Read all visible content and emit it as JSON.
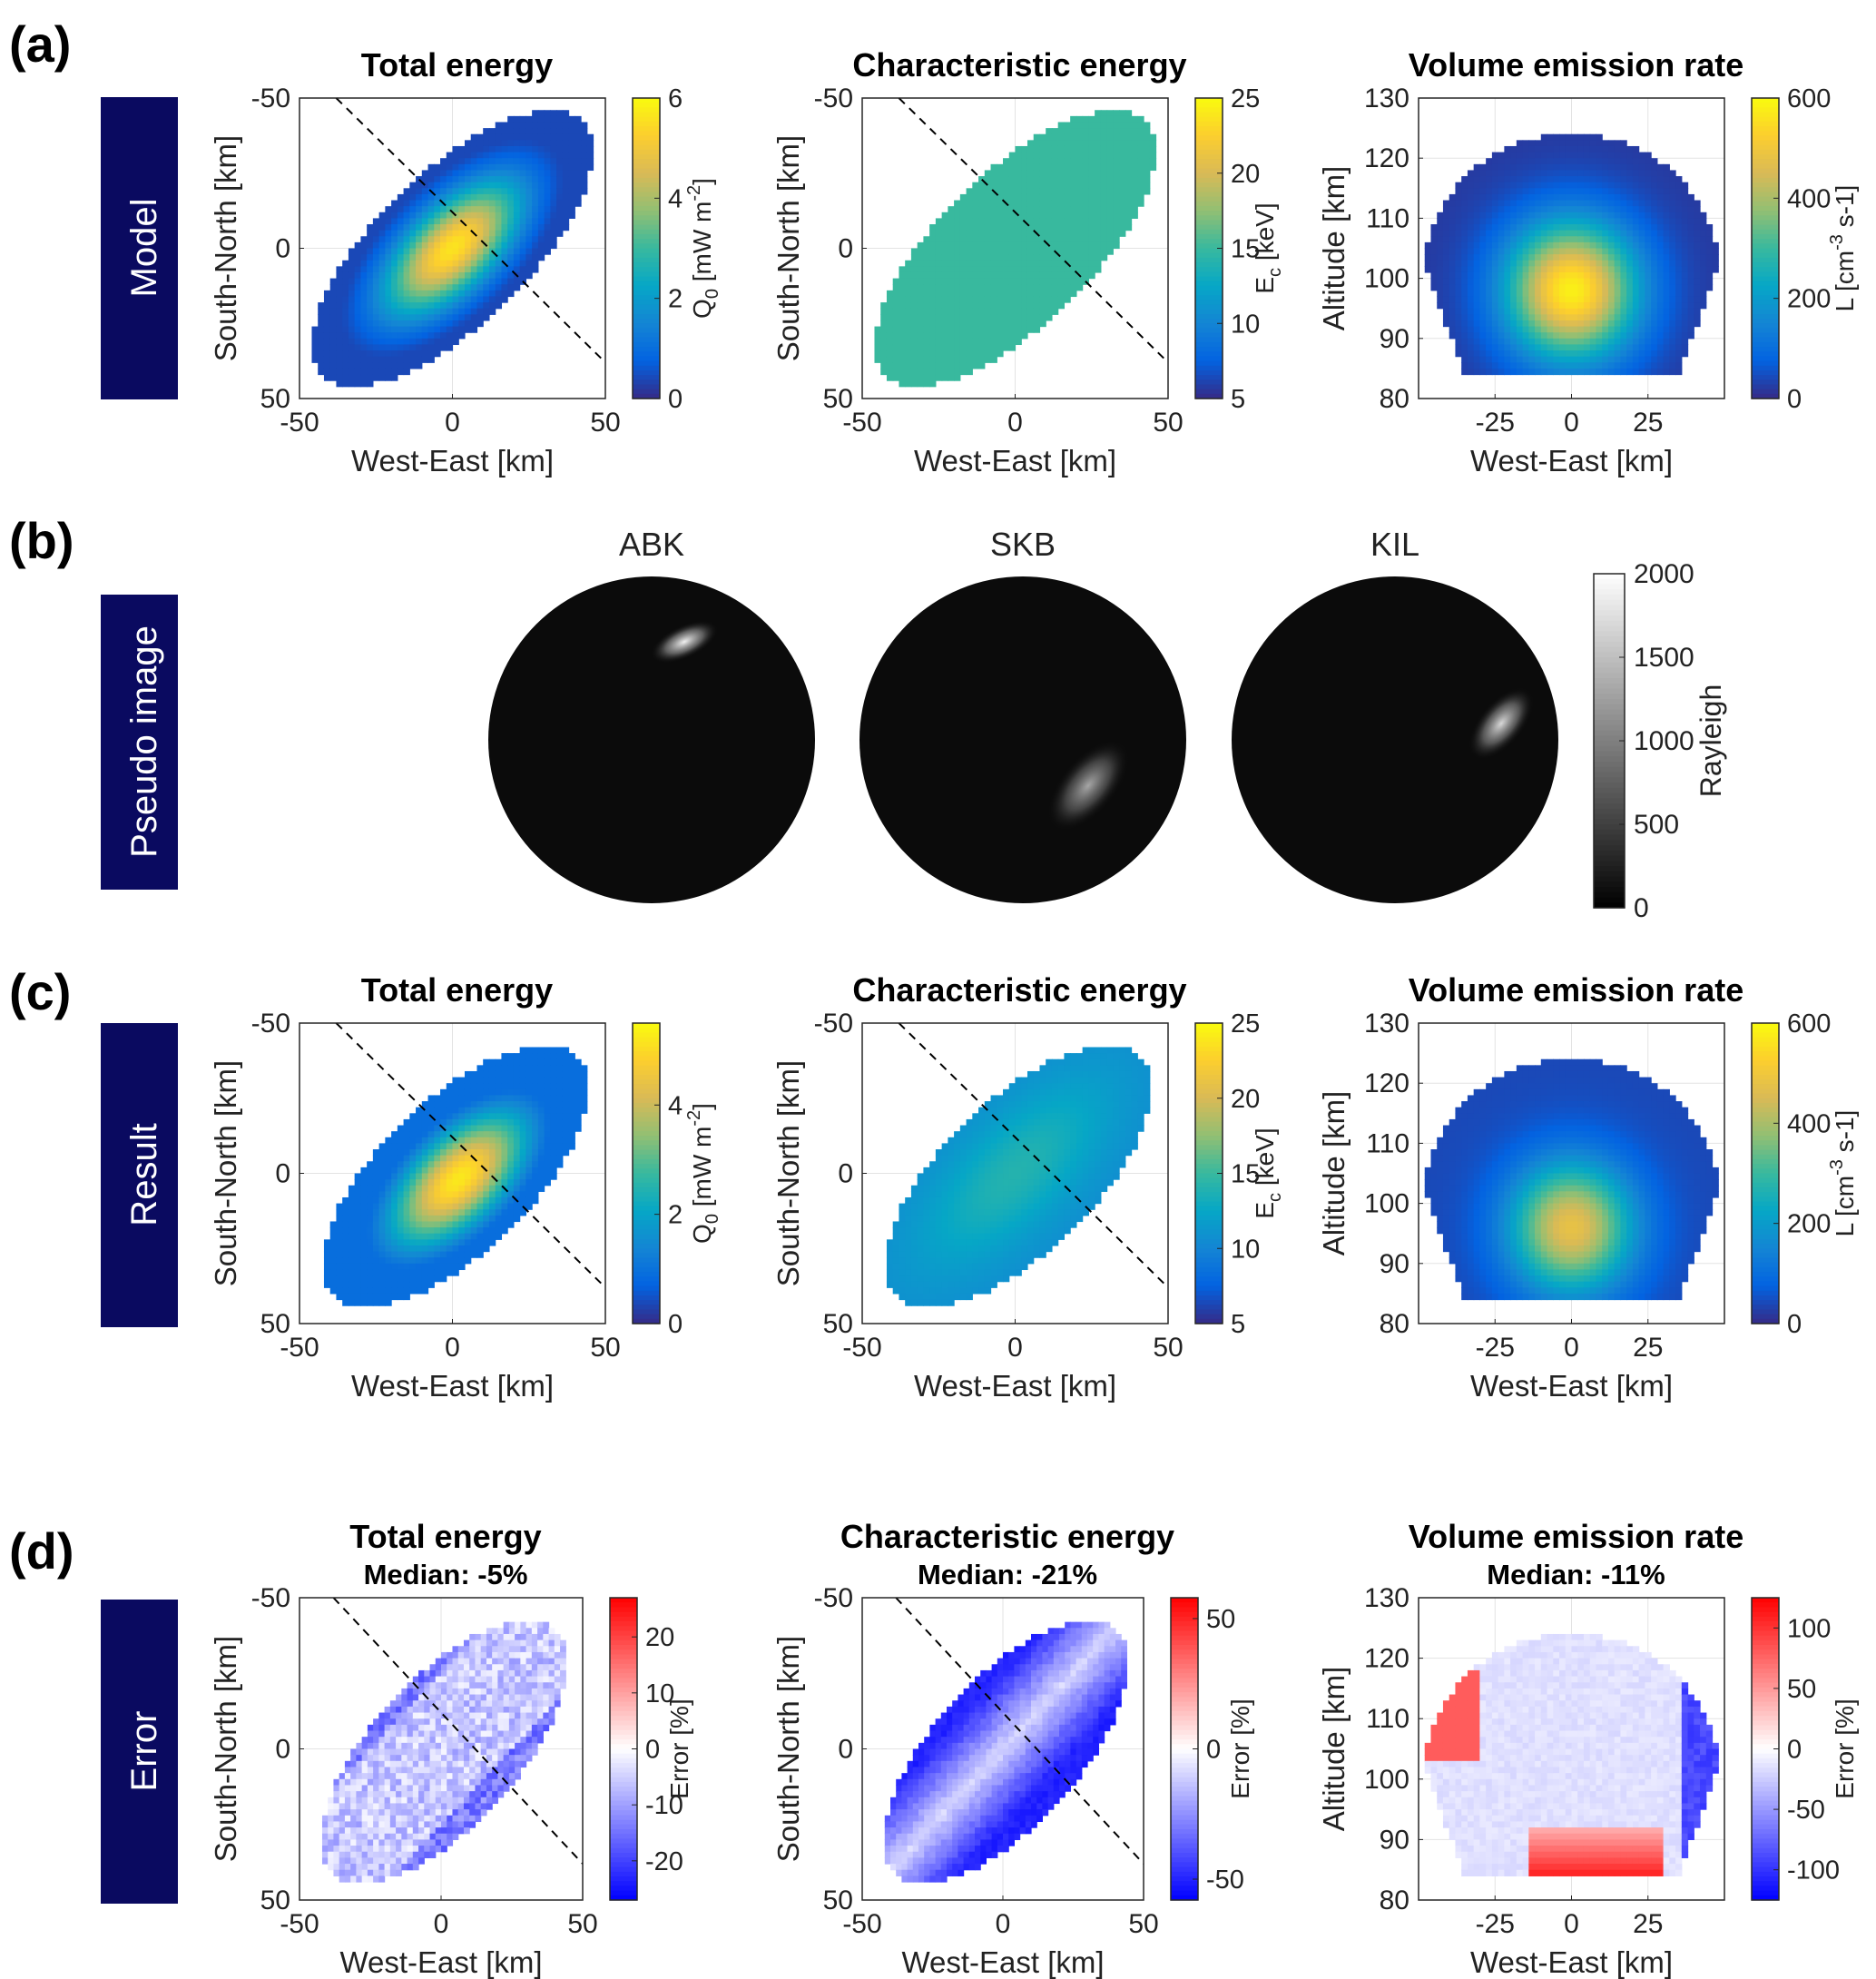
{
  "figure": {
    "rows": [
      {
        "panel_label": "(a)",
        "row_label": "Model"
      },
      {
        "panel_label": "(b)",
        "row_label": "Pseudo image"
      },
      {
        "panel_label": "(c)",
        "row_label": "Result"
      },
      {
        "panel_label": "(d)",
        "row_label": "Error"
      }
    ]
  },
  "colors": {
    "row_label_bg": "#0a0a60",
    "row_label_fg": "#ffffff",
    "dashed_line": "#000000",
    "parula": [
      "#352a87",
      "#0363e1",
      "#1485d4",
      "#06a7c6",
      "#38b99e",
      "#92bf73",
      "#d9ba56",
      "#fcce2e",
      "#f9fb0e"
    ],
    "bwr": [
      "#0000ff",
      "#ffffff",
      "#ff0000"
    ]
  },
  "chart_data": [
    {
      "id": "a1",
      "type": "heatmap",
      "title": "Total energy",
      "field": "q0",
      "xlabel": "West-East [km]",
      "ylabel": "South-North [km]",
      "xlim": [
        -50,
        50
      ],
      "ylim": [
        -50,
        50
      ],
      "y_reversed": true,
      "xticks": [
        -50,
        0,
        50
      ],
      "yticks": [
        -50,
        0,
        50
      ],
      "grid": true,
      "diagonal": true,
      "colorbar": {
        "label": "Q0 [mW m-2]",
        "label_main": "Q",
        "label_sub": "0",
        "label_rest": " [mW m",
        "label_sup": "-2",
        "label_end": "]",
        "min": 0,
        "max": 6,
        "ticks": [
          0,
          2,
          4,
          6
        ],
        "colormap": "parula"
      },
      "field_desc": {
        "shape": "ellipse",
        "orientation_deg": -45,
        "semi_major_km": 60,
        "semi_minor_km": 25,
        "peak_value": 5.6,
        "peak_center": [
          0,
          0
        ]
      }
    },
    {
      "id": "a2",
      "type": "heatmap",
      "title": "Characteristic energy",
      "field": "ec",
      "xlabel": "West-East [km]",
      "ylabel": "South-North [km]",
      "xlim": [
        -50,
        50
      ],
      "ylim": [
        -50,
        50
      ],
      "y_reversed": true,
      "xticks": [
        -50,
        0,
        50
      ],
      "yticks": [
        -50,
        0,
        50
      ],
      "grid": true,
      "diagonal": true,
      "colorbar": {
        "label": "Ec [keV]",
        "label_main": "E",
        "label_sub": "c",
        "label_rest": " [keV]",
        "label_sup": "",
        "label_end": "",
        "min": 5,
        "max": 25,
        "ticks": [
          5,
          10,
          15,
          20,
          25
        ],
        "colormap": "parula"
      },
      "field_desc": {
        "shape": "ellipse",
        "orientation_deg": -45,
        "semi_major_km": 60,
        "semi_minor_km": 25,
        "value": 15
      }
    },
    {
      "id": "a3",
      "type": "heatmap",
      "title": "Volume emission rate",
      "field": "ver",
      "xlabel": "West-East [km]",
      "ylabel": "Altitude [km]",
      "xlim": [
        -50,
        50
      ],
      "ylim": [
        80,
        130
      ],
      "y_reversed": false,
      "xticks": [
        -25,
        0,
        25
      ],
      "yticks": [
        80,
        90,
        100,
        110,
        120,
        130
      ],
      "grid": true,
      "diagonal": false,
      "colorbar": {
        "label": "L [cm-3 s-1]",
        "label_main": "L",
        "label_sub": "",
        "label_rest": " [cm",
        "label_sup": "-3",
        "label_end": " s-1]",
        "min": 0,
        "max": 600,
        "ticks": [
          0,
          200,
          400,
          600
        ],
        "colormap": "parula"
      },
      "field_desc": {
        "peak_altitude_km": 98,
        "peak_value": 560
      }
    },
    {
      "id": "b",
      "type": "image",
      "title": "Pseudo image",
      "cameras": [
        "ABK",
        "SKB",
        "KIL"
      ],
      "colorbar": {
        "label": "Rayleigh",
        "min": 0,
        "max": 2000,
        "ticks": [
          0,
          500,
          1000,
          1500,
          2000
        ],
        "colormap": "gray"
      },
      "spots": [
        {
          "camera": "ABK",
          "peak_rayleigh": 1900
        },
        {
          "camera": "SKB",
          "peak_rayleigh": 1300
        },
        {
          "camera": "KIL",
          "peak_rayleigh": 1700
        }
      ]
    },
    {
      "id": "c1",
      "type": "heatmap",
      "title": "Total energy",
      "field": "q0r",
      "xlabel": "West-East [km]",
      "ylabel": "South-North [km]",
      "xlim": [
        -50,
        50
      ],
      "ylim": [
        -50,
        50
      ],
      "y_reversed": true,
      "xticks": [
        -50,
        0,
        50
      ],
      "yticks": [
        -50,
        0,
        50
      ],
      "grid": true,
      "diagonal": true,
      "colorbar": {
        "label": "Q0 [mW m-2]",
        "label_main": "Q",
        "label_sub": "0",
        "label_rest": " [mW m",
        "label_sup": "-2",
        "label_end": "]",
        "min": 0,
        "max": 5.5,
        "ticks": [
          0,
          2,
          4
        ],
        "colormap": "parula"
      },
      "field_desc": {
        "peak_value": 5.2
      }
    },
    {
      "id": "c2",
      "type": "heatmap",
      "title": "Characteristic energy",
      "field": "ecr",
      "xlabel": "West-East [km]",
      "ylabel": "South-North [km]",
      "xlim": [
        -50,
        50
      ],
      "ylim": [
        -50,
        50
      ],
      "y_reversed": true,
      "xticks": [
        -50,
        0,
        50
      ],
      "yticks": [
        -50,
        0,
        50
      ],
      "grid": true,
      "diagonal": true,
      "colorbar": {
        "label": "Ec [keV]",
        "label_main": "E",
        "label_sub": "c",
        "label_rest": " [keV]",
        "label_sup": "",
        "label_end": "",
        "min": 5,
        "max": 25,
        "ticks": [
          5,
          10,
          15,
          20,
          25
        ],
        "colormap": "parula"
      },
      "field_desc": {
        "value_range": [
          11,
          14
        ]
      }
    },
    {
      "id": "c3",
      "type": "heatmap",
      "title": "Volume emission rate",
      "field": "verr",
      "xlabel": "West-East [km]",
      "ylabel": "Altitude [km]",
      "xlim": [
        -50,
        50
      ],
      "ylim": [
        80,
        130
      ],
      "y_reversed": false,
      "xticks": [
        -25,
        0,
        25
      ],
      "yticks": [
        80,
        90,
        100,
        110,
        120,
        130
      ],
      "grid": true,
      "diagonal": false,
      "colorbar": {
        "label": "L [cm-3 s-1]",
        "label_main": "L",
        "label_sub": "",
        "label_rest": " [cm",
        "label_sup": "-3",
        "label_end": " s-1]",
        "min": 0,
        "max": 600,
        "ticks": [
          0,
          200,
          400,
          600
        ],
        "colormap": "parula"
      },
      "field_desc": {
        "peak_altitude_km": 96,
        "peak_value": 440
      }
    },
    {
      "id": "d1",
      "type": "heatmap",
      "title": "Total energy",
      "subtitle": "Median: -5%",
      "field": "errq",
      "xlabel": "West-East [km]",
      "ylabel": "South-North [km]",
      "xlim": [
        -50,
        50
      ],
      "ylim": [
        -50,
        50
      ],
      "y_reversed": true,
      "xticks": [
        -50,
        0,
        50
      ],
      "yticks": [
        -50,
        0,
        50
      ],
      "grid": true,
      "diagonal": true,
      "colorbar": {
        "label": "Error [%]",
        "label_main": "Error [%]",
        "label_sub": "",
        "label_rest": "",
        "label_sup": "",
        "label_end": "",
        "min": -27,
        "max": 27,
        "ticks": [
          -20,
          -10,
          0,
          10,
          20
        ],
        "colormap": "bwr"
      },
      "field_desc": {
        "median_error_pct": -5
      }
    },
    {
      "id": "d2",
      "type": "heatmap",
      "title": "Characteristic energy",
      "subtitle": "Median: -21%",
      "field": "erre",
      "xlabel": "West-East [km]",
      "ylabel": "South-North [km]",
      "xlim": [
        -50,
        50
      ],
      "ylim": [
        -50,
        50
      ],
      "y_reversed": true,
      "xticks": [
        -50,
        0,
        50
      ],
      "yticks": [
        -50,
        0,
        50
      ],
      "grid": true,
      "diagonal": true,
      "colorbar": {
        "label": "Error [%]",
        "label_main": "Error [%]",
        "label_sub": "",
        "label_rest": "",
        "label_sup": "",
        "label_end": "",
        "min": -58,
        "max": 58,
        "ticks": [
          -50,
          0,
          50
        ],
        "colormap": "bwr"
      },
      "field_desc": {
        "median_error_pct": -21
      }
    },
    {
      "id": "d3",
      "type": "heatmap",
      "title": "Volume emission rate",
      "subtitle": "Median: -11%",
      "field": "errv",
      "xlabel": "West-East [km]",
      "ylabel": "Altitude [km]",
      "xlim": [
        -50,
        50
      ],
      "ylim": [
        80,
        130
      ],
      "y_reversed": false,
      "xticks": [
        -25,
        0,
        25
      ],
      "yticks": [
        80,
        90,
        100,
        110,
        120,
        130
      ],
      "grid": true,
      "diagonal": false,
      "colorbar": {
        "label": "Error [%]",
        "label_main": "Error [%]",
        "label_sub": "",
        "label_rest": "",
        "label_sup": "",
        "label_end": "",
        "min": -125,
        "max": 125,
        "ticks": [
          -100,
          -50,
          0,
          50,
          100
        ],
        "colormap": "bwr"
      },
      "field_desc": {
        "median_error_pct": -11
      }
    }
  ]
}
